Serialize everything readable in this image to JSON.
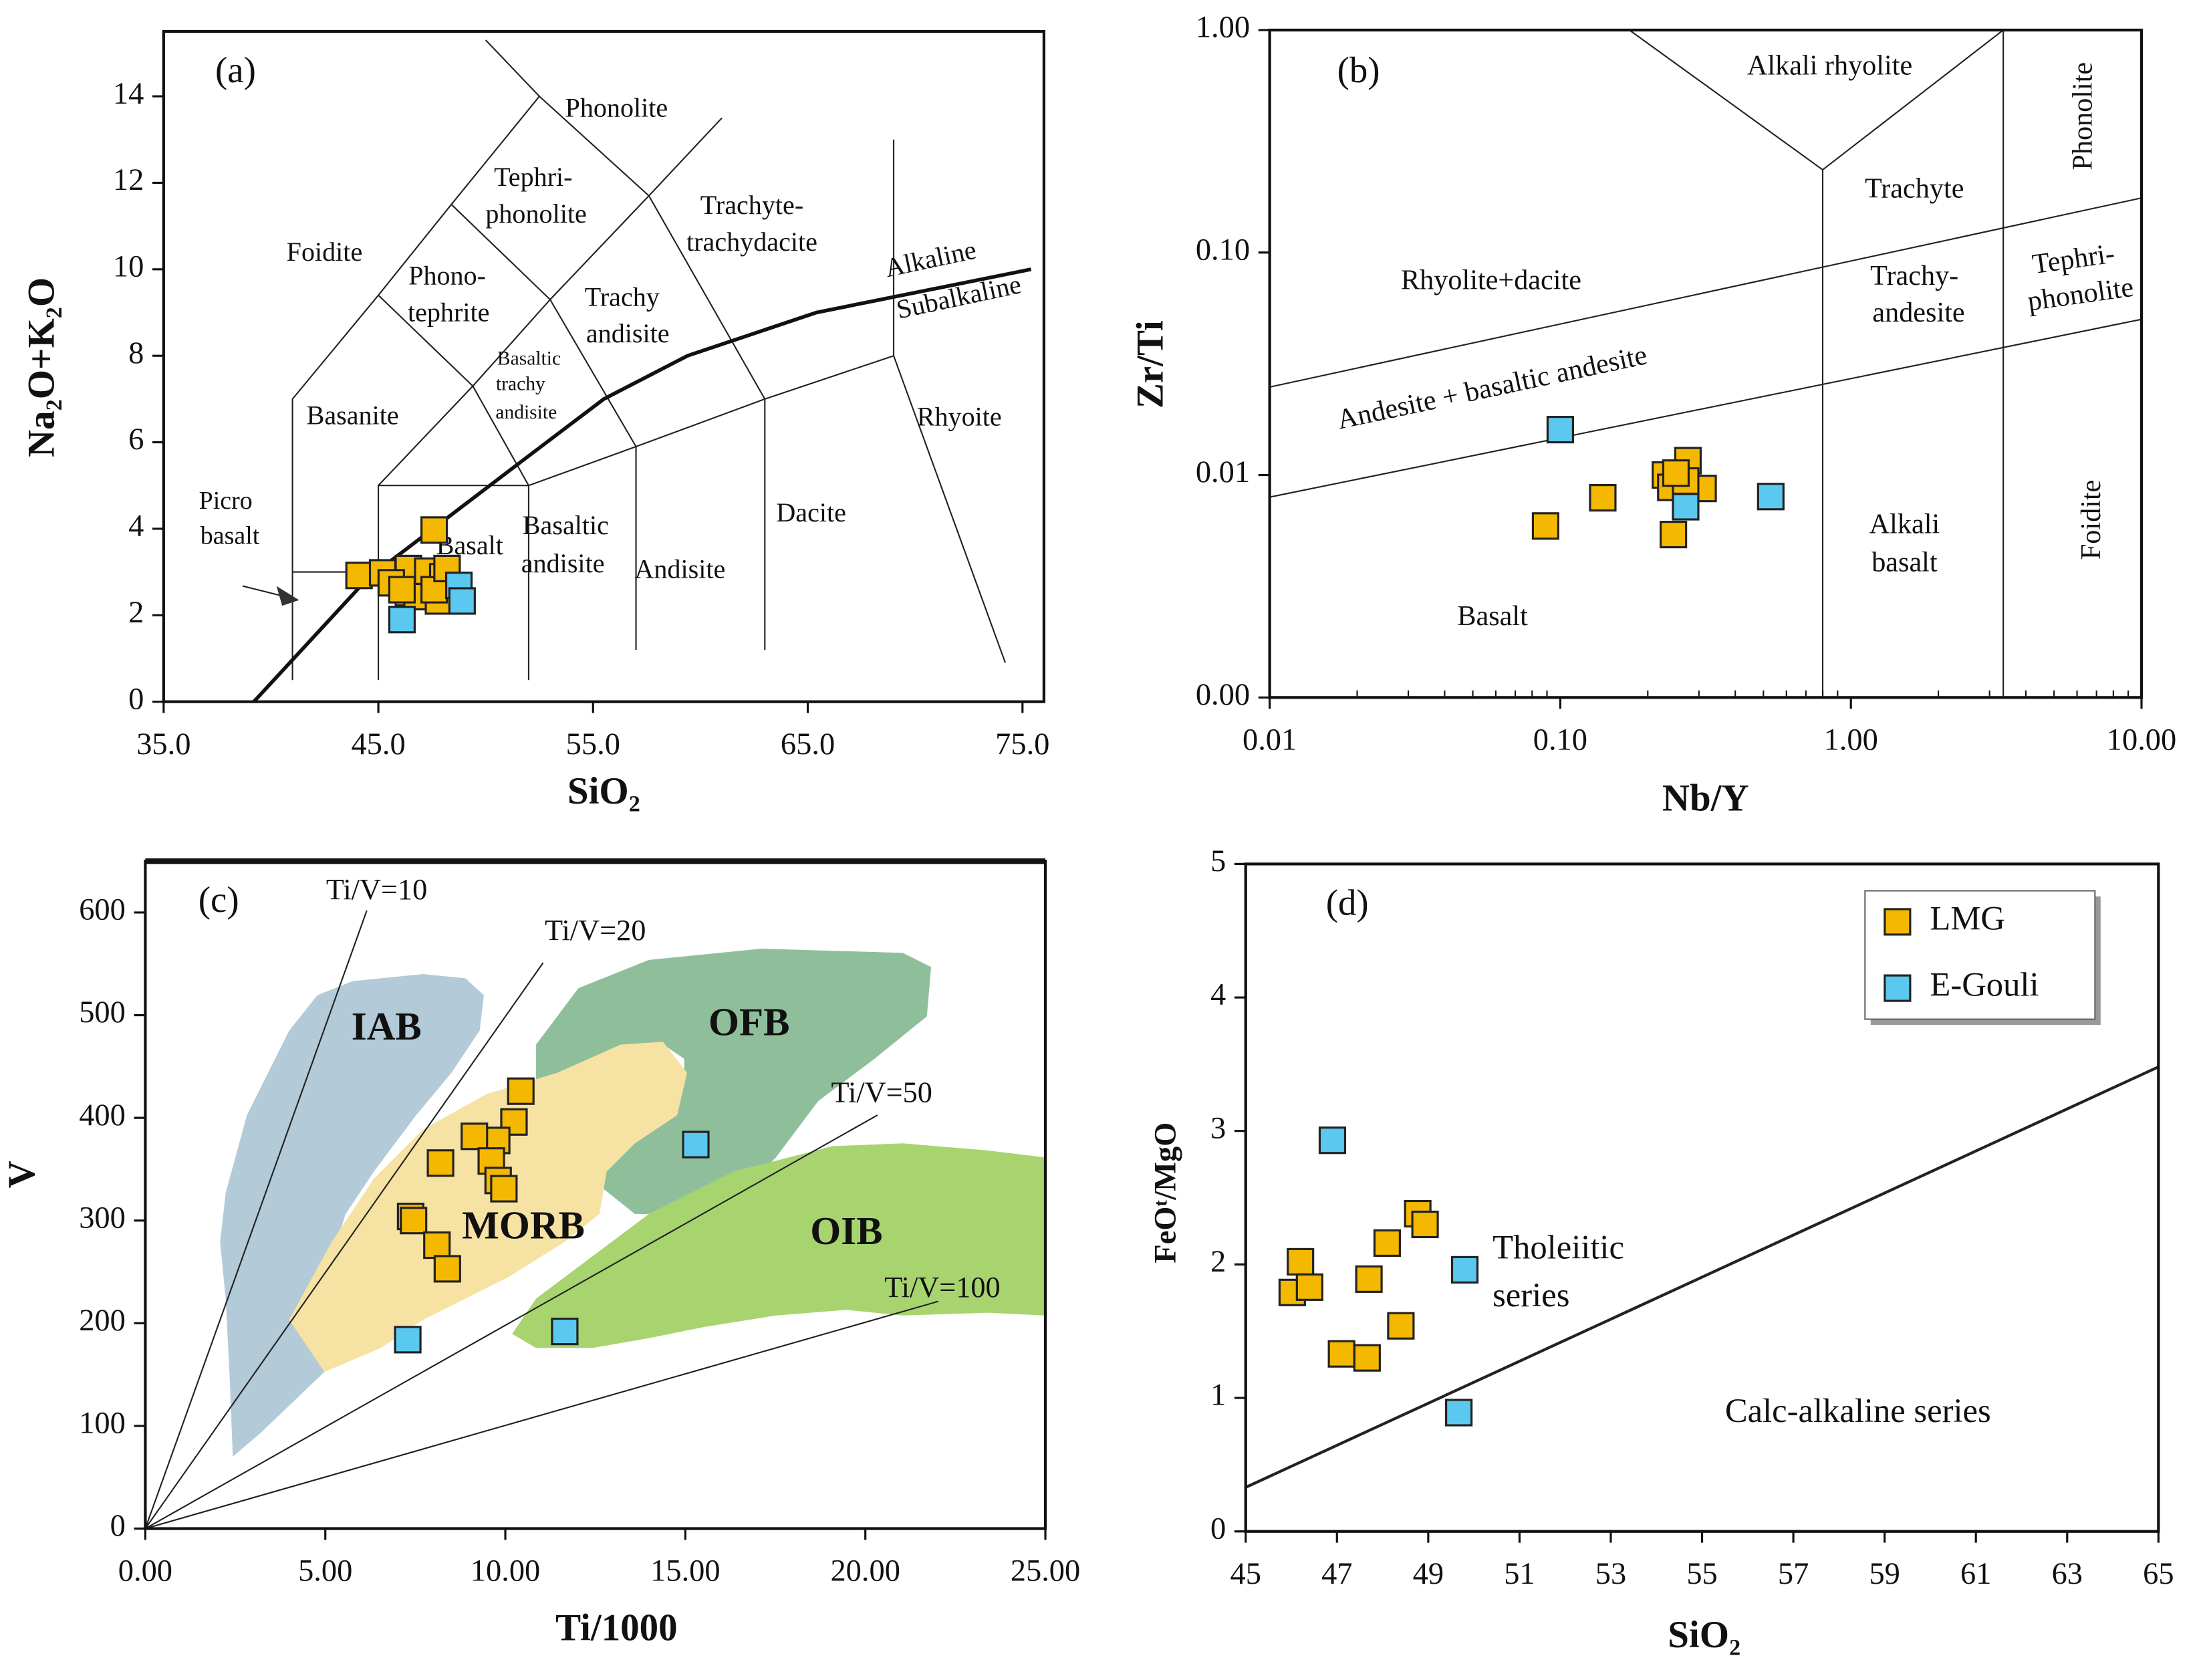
{
  "chart_data": [
    {
      "type": "scatter",
      "panel": "(a)",
      "xlabel": "SiO₂",
      "ylabel": "Na₂O+K₂O",
      "xlim": [
        35,
        76
      ],
      "ylim": [
        0,
        15.5
      ],
      "xticks": [
        {
          "value": 35,
          "label": "35.0"
        },
        {
          "value": 45,
          "label": "45.0"
        },
        {
          "value": 55,
          "label": "55.0"
        },
        {
          "value": 65,
          "label": "65.0"
        },
        {
          "value": 75,
          "label": "75.0"
        }
      ],
      "yticks": [
        0,
        2,
        4,
        6,
        8,
        10,
        12,
        14
      ],
      "annotations": [
        "Phonolite",
        "Tephri-",
        "phonolite",
        "Foidite",
        "Phono-",
        "tephrite",
        "Trachyte-",
        "trachydacite",
        "Trachy",
        "andisite",
        "Basaltic",
        "trachy",
        "andisite",
        "Basanite",
        "Alkaline",
        "Subalkaline",
        "Rhyoite",
        "Picro",
        "basalt",
        "Basalt",
        "Basaltic",
        "andisite",
        "Andisite",
        "Dacite"
      ],
      "series": [
        {
          "color": "#f5b800",
          "x": [
            47.6,
            44.1,
            45.2,
            46.4,
            45.6,
            46.4,
            46.8,
            47.3,
            47.8,
            48.0,
            47.6,
            48.2,
            46.1
          ],
          "y": [
            3.97,
            2.92,
            2.98,
            3.08,
            2.75,
            2.52,
            2.43,
            3.02,
            2.33,
            2.89,
            2.59,
            3.08,
            2.59
          ]
        },
        {
          "color": "#5bc8f0",
          "x": [
            46.1,
            48.75,
            48.9
          ],
          "y": [
            1.9,
            2.69,
            2.33
          ]
        }
      ]
    },
    {
      "type": "scatter",
      "panel": "(b)",
      "xlabel": "Nb/Y",
      "ylabel": "Zr/Ti",
      "xscale": "log",
      "yscale": "log",
      "xlim": [
        0.01,
        10
      ],
      "ylim": [
        0.001,
        1
      ],
      "xticks": [
        0.01,
        {
          "value": 0.1,
          "label": "0.10"
        },
        {
          "value": 1,
          "label": "1.00"
        },
        {
          "value": 10,
          "label": "10.00"
        }
      ],
      "yticks": [
        {
          "value": 0.001,
          "label": "0.00"
        },
        0.01,
        {
          "value": 0.1,
          "label": "0.10"
        },
        {
          "value": 1,
          "label": "1.00"
        }
      ],
      "annotations": [
        "Alkali rhyolite",
        "Phonolite",
        "Trachyte",
        "Rhyolite+dacite",
        "Trachy-",
        "andesite",
        "Tephri-",
        "phonolite",
        "Andesite + basaltic andesite",
        "Alkali",
        "basalt",
        "Foidite",
        "Basalt"
      ],
      "series": [
        {
          "color": "#f5b800",
          "x": [
            0.089,
            0.14,
            0.23,
            0.24,
            0.275,
            0.31,
            0.245,
            0.27,
            0.25
          ],
          "y": [
            0.0059,
            0.0079,
            0.01,
            0.0088,
            0.0116,
            0.0087,
            0.0054,
            0.0094,
            0.0102
          ]
        },
        {
          "color": "#5bc8f0",
          "x": [
            0.1,
            0.53,
            0.27
          ],
          "y": [
            0.016,
            0.008,
            0.0072
          ]
        }
      ]
    },
    {
      "type": "scatter",
      "panel": "(c)",
      "xlabel": "Ti/1000",
      "ylabel": "V",
      "xlim": [
        0,
        25
      ],
      "ylim": [
        0,
        650
      ],
      "xticks": [
        {
          "value": 0,
          "label": "0.00"
        },
        {
          "value": 5,
          "label": "5.00"
        },
        {
          "value": 10,
          "label": "10.00"
        },
        {
          "value": 15,
          "label": "15.00"
        },
        {
          "value": 20,
          "label": "20.00"
        },
        {
          "value": 25,
          "label": "25.00"
        }
      ],
      "yticks": [
        0,
        100,
        200,
        300,
        400,
        500,
        600
      ],
      "annotations": [
        "Ti/V=10",
        "Ti/V=20",
        "Ti/V=50",
        "Ti/V=100",
        "IAB",
        "OFB",
        "MORB",
        "OIB"
      ],
      "series": [
        {
          "color": "#f5b800",
          "x": [
            10.43,
            10.24,
            9.76,
            9.14,
            9.61,
            9.8,
            9.96,
            8.2,
            7.37,
            7.45,
            8.1,
            8.39
          ],
          "y": [
            426,
            396,
            378,
            382,
            358,
            339,
            331,
            356,
            304,
            300,
            276,
            253
          ]
        },
        {
          "color": "#5bc8f0",
          "x": [
            7.29,
            11.65,
            15.29
          ],
          "y": [
            184,
            192,
            374
          ]
        }
      ]
    },
    {
      "type": "scatter",
      "panel": "(d)",
      "xlabel": "SiO₂",
      "ylabel": "FeOᵗ/MgO",
      "xlim": [
        45,
        65
      ],
      "ylim": [
        0,
        5
      ],
      "xticks": [
        45,
        47,
        49,
        51,
        53,
        55,
        57,
        59,
        61,
        63,
        65
      ],
      "yticks": [
        0,
        1,
        2,
        3,
        4,
        5
      ],
      "annotations": [
        "Tholeiitic",
        "series",
        "Calc-alkaline series"
      ],
      "legend": "upper right",
      "series": [
        {
          "name": "LMG",
          "color": "#f5b800",
          "x": [
            46.02,
            46.2,
            46.4,
            47.1,
            47.66,
            47.7,
            48.1,
            48.4,
            48.77,
            48.93
          ],
          "y": [
            1.79,
            2.02,
            1.83,
            1.33,
            1.3,
            1.89,
            2.16,
            1.54,
            2.38,
            2.3
          ]
        },
        {
          "name": "E-Gouli",
          "color": "#5bc8f0",
          "x": [
            46.9,
            49.8,
            49.67
          ],
          "y": [
            2.93,
            1.96,
            0.89
          ]
        }
      ]
    }
  ]
}
